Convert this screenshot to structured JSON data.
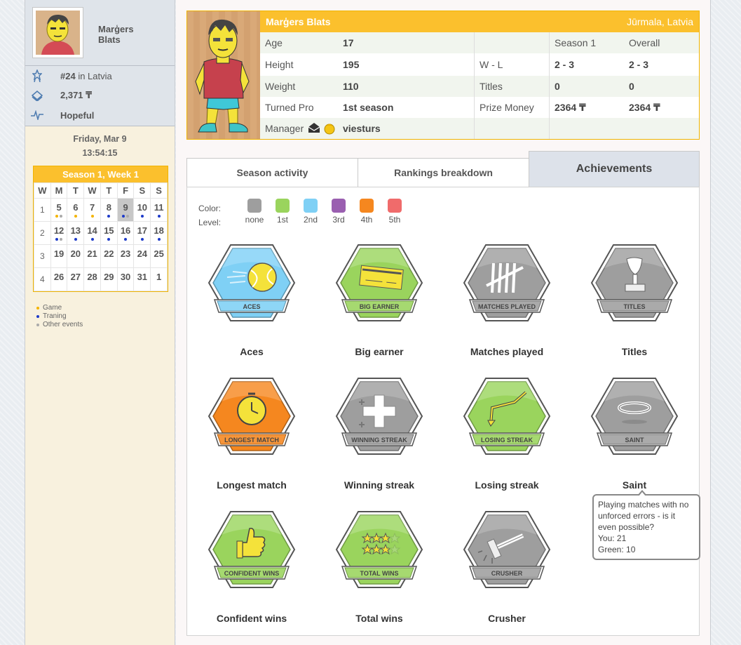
{
  "player": {
    "first_name": "Marģers",
    "last_name": "Blats",
    "full_name": "Marģers Blats",
    "location": "Jūrmala, Latvia",
    "rank": "#24",
    "rank_suffix": "in Latvia",
    "money": "2,371 ₸",
    "status": "Hopeful"
  },
  "datetime": {
    "date": "Friday, Mar 9",
    "time": "13:54:15"
  },
  "calendar": {
    "title": "Season 1, Week 1",
    "weekdays": [
      "W",
      "M",
      "T",
      "W",
      "T",
      "F",
      "S",
      "S"
    ],
    "weeks": [
      {
        "n": "1",
        "days": [
          "5",
          "6",
          "7",
          "8",
          "9",
          "10",
          "11"
        ]
      },
      {
        "n": "2",
        "days": [
          "12",
          "13",
          "14",
          "15",
          "16",
          "17",
          "18"
        ]
      },
      {
        "n": "3",
        "days": [
          "19",
          "20",
          "21",
          "22",
          "23",
          "24",
          "25"
        ]
      },
      {
        "n": "4",
        "days": [
          "26",
          "27",
          "28",
          "29",
          "30",
          "31",
          "1"
        ]
      }
    ]
  },
  "legend": {
    "game": "Game",
    "training": "Traning",
    "other": "Other events"
  },
  "profile": {
    "age_label": "Age",
    "age": "17",
    "height_label": "Height",
    "height": "195",
    "weight_label": "Weight",
    "weight": "110",
    "turned_pro_label": "Turned Pro",
    "turned_pro": "1st season",
    "manager_label": "Manager",
    "manager": "viesturs",
    "season_header": "Season 1",
    "overall_header": "Overall",
    "wl_label": "W - L",
    "wl_season": "2 - 3",
    "wl_overall": "2 - 3",
    "titles_label": "Titles",
    "titles_season": "0",
    "titles_overall": "0",
    "prize_label": "Prize Money",
    "prize_season": "2364 ₸",
    "prize_overall": "2364 ₸"
  },
  "tabs": {
    "season": "Season activity",
    "rankings": "Rankings breakdown",
    "achievements": "Achievements"
  },
  "levels": {
    "color_label": "Color:",
    "level_label": "Level:",
    "items": [
      {
        "name": "none",
        "color": "#9e9e9e"
      },
      {
        "name": "1st",
        "color": "#9ad45d"
      },
      {
        "name": "2nd",
        "color": "#7fd0f5"
      },
      {
        "name": "3rd",
        "color": "#9a5fb0"
      },
      {
        "name": "4th",
        "color": "#f5871f"
      },
      {
        "name": "5th",
        "color": "#f06b6b"
      }
    ]
  },
  "achievements": [
    {
      "name": "Aces",
      "badge": "ACES",
      "color": "#7fd0f5",
      "icon": "tennis-ball-icon"
    },
    {
      "name": "Big earner",
      "badge": "BIG EARNER",
      "color": "#9ad45d",
      "icon": "cheque-icon"
    },
    {
      "name": "Matches played",
      "badge": "MATCHES PLAYED",
      "color": "#9e9e9e",
      "icon": "tally-marks-icon"
    },
    {
      "name": "Titles",
      "badge": "TITLES",
      "color": "#9e9e9e",
      "icon": "trophy-icon"
    },
    {
      "name": "Longest match",
      "badge": "LONGEST MATCH",
      "color": "#f5871f",
      "icon": "clock-icon"
    },
    {
      "name": "Winning streak",
      "badge": "WINNING STREAK",
      "color": "#9e9e9e",
      "icon": "plus-icon"
    },
    {
      "name": "Losing streak",
      "badge": "LOSING STREAK",
      "color": "#9ad45d",
      "icon": "down-arrow-icon"
    },
    {
      "name": "Saint",
      "badge": "SAINT",
      "color": "#9e9e9e",
      "icon": "halo-icon"
    },
    {
      "name": "Confident wins",
      "badge": "CONFIDENT WINS",
      "color": "#9ad45d",
      "icon": "thumbs-up-icon"
    },
    {
      "name": "Total wins",
      "badge": "TOTAL WINS",
      "color": "#9ad45d",
      "icon": "stars-icon"
    },
    {
      "name": "Crusher",
      "badge": "CRUSHER",
      "color": "#9e9e9e",
      "icon": "hammer-icon"
    }
  ],
  "tooltip": {
    "text": "Playing matches with no unforced errors - is it even possible?",
    "you": "You: 21",
    "green": "Green: 10"
  }
}
